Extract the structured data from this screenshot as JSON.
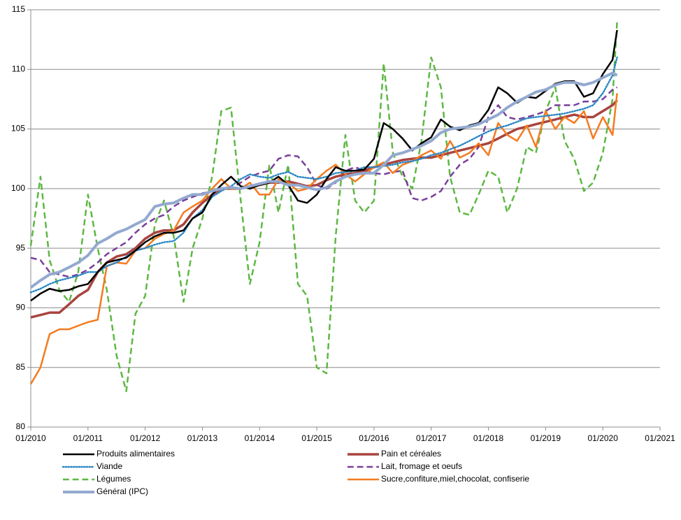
{
  "chart_data": {
    "type": "line",
    "x": [
      2010,
      2010.17,
      2010.33,
      2010.5,
      2010.67,
      2010.83,
      2011,
      2011.17,
      2011.33,
      2011.5,
      2011.67,
      2011.83,
      2012,
      2012.17,
      2012.33,
      2012.5,
      2012.67,
      2012.83,
      2013,
      2013.17,
      2013.33,
      2013.5,
      2013.67,
      2013.83,
      2014,
      2014.17,
      2014.33,
      2014.5,
      2014.67,
      2014.83,
      2015,
      2015.17,
      2015.33,
      2015.5,
      2015.67,
      2015.83,
      2016,
      2016.17,
      2016.33,
      2016.5,
      2016.67,
      2016.83,
      2017,
      2017.17,
      2017.33,
      2017.5,
      2017.67,
      2017.83,
      2018,
      2018.17,
      2018.33,
      2018.5,
      2018.67,
      2018.83,
      2019,
      2019.17,
      2019.33,
      2019.5,
      2019.67,
      2019.83,
      2020,
      2020.17,
      2020.25
    ],
    "xlim": [
      2010,
      2021
    ],
    "xticks": [
      {
        "value": 2010,
        "label": "01/2010"
      },
      {
        "value": 2011,
        "label": "01/2011"
      },
      {
        "value": 2012,
        "label": "01/2012"
      },
      {
        "value": 2013,
        "label": "01/2013"
      },
      {
        "value": 2014,
        "label": "01/2014"
      },
      {
        "value": 2015,
        "label": "01/2015"
      },
      {
        "value": 2016,
        "label": "01/2016"
      },
      {
        "value": 2017,
        "label": "01/2017"
      },
      {
        "value": 2018,
        "label": "01/2018"
      },
      {
        "value": 2019,
        "label": "01/2019"
      },
      {
        "value": 2020,
        "label": "01/2020"
      },
      {
        "value": 2021,
        "label": "01/2021"
      }
    ],
    "ylim": [
      80,
      115
    ],
    "yticks": [
      80,
      85,
      90,
      95,
      100,
      105,
      110,
      115
    ],
    "grid": true,
    "legend": "bottom",
    "series": [
      {
        "name": "Produits alimentaires",
        "color": "#000000",
        "style": "solid",
        "width": 2.5,
        "values": [
          90.6,
          91.2,
          91.6,
          91.4,
          91.5,
          91.8,
          92.0,
          93.0,
          93.8,
          94.0,
          94.2,
          94.8,
          95.5,
          96.0,
          96.3,
          96.3,
          96.5,
          97.5,
          98.0,
          99.5,
          100.3,
          101.0,
          100.2,
          100.0,
          100.3,
          100.5,
          101.0,
          100.3,
          99.0,
          98.8,
          99.5,
          100.8,
          101.8,
          101.5,
          101.5,
          101.6,
          102.5,
          105.5,
          105.0,
          104.2,
          103.2,
          103.8,
          104.3,
          105.8,
          105.2,
          104.9,
          105.3,
          105.5,
          106.6,
          108.5,
          108.0,
          107.2,
          107.7,
          107.6,
          108.2,
          108.8,
          109.0,
          109.0,
          107.7,
          108.0,
          109.6,
          110.8,
          113.3
        ]
      },
      {
        "name": "Pain et céréales",
        "color": "#a9443f",
        "style": "solid",
        "width": 3.5,
        "values": [
          89.2,
          89.4,
          89.6,
          89.6,
          90.3,
          91.0,
          91.5,
          93.0,
          93.8,
          94.3,
          94.5,
          95.0,
          95.8,
          96.3,
          96.5,
          96.5,
          97.0,
          98.0,
          98.8,
          99.5,
          100.0,
          100.0,
          100.0,
          100.2,
          100.3,
          100.5,
          100.5,
          100.6,
          100.4,
          100.2,
          100.3,
          100.7,
          101.0,
          101.2,
          101.3,
          101.5,
          101.8,
          102.0,
          102.2,
          102.4,
          102.5,
          102.6,
          102.6,
          102.8,
          103.0,
          103.2,
          103.4,
          103.6,
          103.8,
          104.2,
          104.6,
          105.0,
          105.2,
          105.4,
          105.6,
          105.8,
          106.0,
          106.2,
          106.0,
          106.0,
          106.5,
          107.0,
          107.4
        ]
      },
      {
        "name": "Viande",
        "color": "#2a86c4",
        "style": "dotted",
        "width": 2.5,
        "values": [
          91.3,
          91.6,
          92.0,
          92.3,
          92.5,
          92.7,
          93.0,
          93.0,
          93.5,
          93.8,
          94.3,
          94.8,
          95.0,
          95.3,
          95.5,
          95.6,
          96.3,
          97.5,
          98.2,
          99.3,
          99.8,
          100.2,
          100.8,
          101.2,
          101.0,
          100.9,
          101.2,
          101.4,
          101.0,
          100.9,
          100.8,
          101.0,
          101.3,
          101.4,
          101.5,
          101.8,
          101.8,
          101.9,
          102.0,
          102.2,
          102.3,
          102.5,
          102.8,
          103.0,
          103.3,
          103.6,
          104.0,
          104.4,
          104.8,
          105.1,
          105.3,
          105.6,
          105.9,
          106.0,
          106.1,
          106.2,
          106.3,
          106.5,
          106.7,
          107.0,
          108.0,
          109.5,
          111.0
        ]
      },
      {
        "name": "Lait, fromage et oeufs",
        "color": "#7a3f9a",
        "style": "dashed",
        "width": 2.5,
        "values": [
          94.2,
          94.0,
          93.0,
          92.8,
          92.6,
          92.8,
          93.2,
          93.8,
          94.5,
          95.0,
          95.5,
          96.3,
          97.0,
          97.5,
          97.8,
          98.5,
          99.0,
          99.3,
          99.6,
          99.8,
          100.0,
          100.0,
          100.5,
          101.0,
          101.3,
          101.5,
          102.5,
          102.8,
          102.7,
          101.8,
          100.3,
          100.0,
          100.5,
          101.5,
          101.8,
          101.5,
          101.3,
          101.2,
          101.4,
          101.5,
          99.2,
          99.0,
          99.3,
          99.8,
          101.0,
          102.0,
          102.5,
          103.5,
          106.0,
          107.0,
          106.0,
          105.8,
          106.0,
          106.2,
          106.5,
          107.0,
          107.0,
          107.0,
          107.3,
          107.3,
          107.5,
          108.3,
          108.5
        ]
      },
      {
        "name": "Légumes",
        "color": "#5db843",
        "style": "dashed",
        "width": 2.5,
        "values": [
          95.2,
          101.0,
          94.0,
          91.5,
          90.5,
          93.0,
          99.5,
          95.0,
          91.5,
          86.0,
          83.0,
          89.5,
          91.0,
          97.0,
          99.0,
          96.0,
          90.5,
          95.0,
          97.5,
          101.0,
          106.5,
          106.8,
          99.0,
          92.0,
          95.5,
          102.0,
          98.0,
          102.0,
          92.0,
          91.0,
          85.0,
          84.5,
          96.0,
          104.5,
          99.0,
          98.0,
          99.0,
          110.5,
          103.0,
          101.0,
          100.0,
          104.0,
          111.0,
          108.5,
          101.0,
          98.0,
          97.8,
          99.5,
          101.5,
          101.0,
          98.0,
          100.0,
          103.5,
          103.0,
          106.5,
          108.5,
          104.0,
          102.5,
          99.8,
          100.5,
          103.0,
          107.5,
          114.0
        ]
      },
      {
        "name": "Sucre,confiture,miel,chocolat, confiserie",
        "color": "#f47b20",
        "style": "solid",
        "width": 2.5,
        "values": [
          83.6,
          85.0,
          87.8,
          88.2,
          88.2,
          88.5,
          88.8,
          89.0,
          93.5,
          93.8,
          93.7,
          94.8,
          95.0,
          95.8,
          96.2,
          96.5,
          98.0,
          98.5,
          99.0,
          100.0,
          100.8,
          100.0,
          100.0,
          100.5,
          99.5,
          99.5,
          100.8,
          100.5,
          99.8,
          100.0,
          100.8,
          101.5,
          102.0,
          101.2,
          100.6,
          101.2,
          101.8,
          102.2,
          101.3,
          102.0,
          102.3,
          102.8,
          103.2,
          102.5,
          104.0,
          102.6,
          103.0,
          103.8,
          102.8,
          105.5,
          104.5,
          104.0,
          105.3,
          103.5,
          106.5,
          105.0,
          106.0,
          105.5,
          106.5,
          104.2,
          106.0,
          104.5,
          108.0
        ]
      },
      {
        "name": "Général (IPC)",
        "color": "#93a9cf",
        "style": "solid",
        "width": 4,
        "values": [
          91.7,
          92.3,
          92.8,
          93.0,
          93.4,
          93.8,
          94.4,
          95.4,
          95.8,
          96.3,
          96.6,
          97.0,
          97.4,
          98.5,
          98.7,
          98.8,
          99.2,
          99.5,
          99.5,
          99.8,
          100.0,
          100.1,
          100.0,
          100.2,
          100.4,
          100.6,
          100.6,
          100.3,
          100.3,
          100.1,
          99.9,
          100.1,
          100.6,
          101.0,
          101.2,
          101.3,
          101.3,
          102.0,
          102.8,
          103.0,
          103.3,
          103.6,
          104.0,
          104.7,
          105.0,
          105.1,
          105.2,
          105.4,
          105.8,
          106.2,
          106.8,
          107.3,
          107.7,
          108.1,
          108.3,
          108.7,
          108.9,
          108.9,
          108.7,
          108.9,
          109.3,
          109.7,
          109.5
        ]
      }
    ]
  }
}
